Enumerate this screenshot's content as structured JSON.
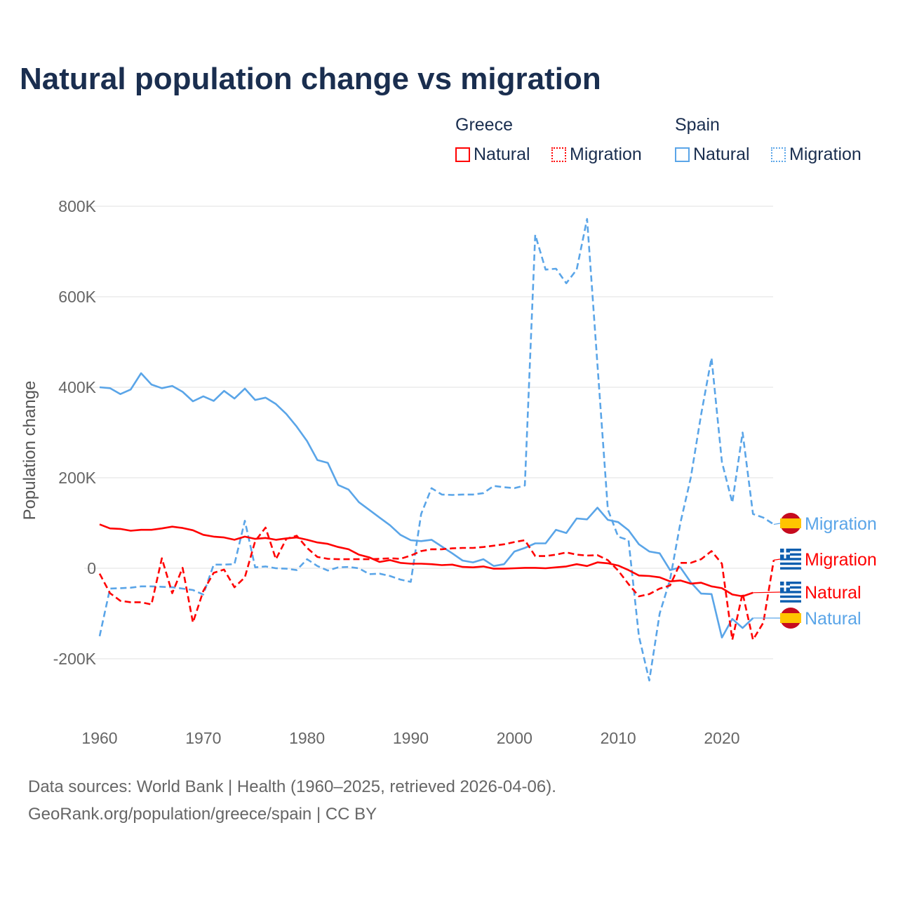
{
  "chart_data": {
    "type": "line",
    "title": "Natural population change vs migration",
    "xlabel": "",
    "ylabel": "Population change",
    "xlim": [
      1960,
      2025
    ],
    "ylim": [
      -300000,
      800000
    ],
    "x_ticks": [
      "1960",
      "1970",
      "1980",
      "1990",
      "2000",
      "2010",
      "2020"
    ],
    "y_ticks": [
      {
        "v": 800000,
        "label": "800K"
      },
      {
        "v": 600000,
        "label": "600K"
      },
      {
        "v": 400000,
        "label": "400K"
      },
      {
        "v": 200000,
        "label": "200K"
      },
      {
        "v": 0,
        "label": "0"
      },
      {
        "v": -200000,
        "label": "-200K"
      }
    ],
    "grid": true,
    "legend": {
      "placement": "top-right",
      "groups": [
        {
          "name": "Greece",
          "items": [
            "Natural",
            "Migration"
          ]
        },
        {
          "name": "Spain",
          "items": [
            "Natural",
            "Migration"
          ]
        }
      ]
    },
    "series": [
      {
        "name": "Greece Natural",
        "country": "Greece",
        "kind": "Natural",
        "color": "#ff0000",
        "dashed": false,
        "start": 1960,
        "values": [
          97,
          88,
          87,
          83,
          85,
          85,
          88,
          92,
          89,
          84,
          74,
          70,
          68,
          63,
          70,
          65,
          67,
          63,
          66,
          68,
          63,
          57,
          54,
          47,
          42,
          30,
          24,
          14,
          18,
          12,
          10,
          10,
          9,
          7,
          8,
          3,
          2,
          4,
          -1,
          -1,
          0,
          1,
          1,
          0,
          2,
          4,
          9,
          5,
          13,
          11,
          6,
          -4,
          -16,
          -17,
          -20,
          -29,
          -27,
          -34,
          -32,
          -40,
          -44,
          -58,
          -62,
          -54
        ]
      },
      {
        "name": "Greece Migration",
        "country": "Greece",
        "kind": "Migration",
        "color": "#ff0000",
        "dashed": true,
        "start": 1960,
        "values": [
          -12,
          -55,
          -72,
          -75,
          -75,
          -80,
          22,
          -55,
          1,
          -120,
          -50,
          -10,
          -3,
          -42,
          -20,
          60,
          90,
          20,
          65,
          72,
          45,
          25,
          21,
          20,
          20,
          20,
          20,
          21,
          22,
          21,
          28,
          38,
          42,
          42,
          44,
          45,
          45,
          47,
          50,
          53,
          58,
          62,
          27,
          27,
          30,
          35,
          30,
          28,
          29,
          18,
          -5,
          -35,
          -62,
          -57,
          -45,
          -38,
          12,
          12,
          20,
          38,
          10,
          -158,
          -55,
          -158,
          -120,
          18
        ]
      },
      {
        "name": "Spain Natural",
        "country": "Spain",
        "kind": "Natural",
        "color": "#5aa5e8",
        "dashed": false,
        "start": 1960,
        "values": [
          400,
          398,
          385,
          395,
          431,
          406,
          398,
          403,
          390,
          369,
          380,
          370,
          392,
          375,
          397,
          372,
          377,
          363,
          341,
          313,
          281,
          239,
          233,
          184,
          174,
          146,
          129,
          112,
          95,
          74,
          62,
          60,
          63,
          48,
          33,
          17,
          13,
          20,
          5,
          9,
          37,
          45,
          55,
          55,
          85,
          78,
          110,
          108,
          134,
          107,
          102,
          84,
          53,
          37,
          33,
          -4,
          2,
          -31,
          -56,
          -57,
          -153,
          -112,
          -132,
          -110
        ]
      },
      {
        "name": "Spain Migration",
        "country": "Spain",
        "kind": "Migration",
        "color": "#5aa5e8",
        "dashed": true,
        "start": 1960,
        "values": [
          -150,
          -45,
          -44,
          -43,
          -40,
          -40,
          -41,
          -42,
          -45,
          -48,
          -58,
          8,
          8,
          9,
          105,
          2,
          4,
          0,
          -1,
          -4,
          20,
          5,
          -5,
          2,
          3,
          0,
          -13,
          -12,
          -17,
          -25,
          -30,
          120,
          177,
          163,
          162,
          163,
          163,
          166,
          182,
          179,
          177,
          183,
          737,
          660,
          662,
          630,
          660,
          772,
          450,
          130,
          70,
          62,
          -150,
          -248,
          -100,
          -25,
          100,
          200,
          340,
          465,
          235,
          145,
          300,
          120,
          112,
          97
        ]
      }
    ],
    "value_units": "thousands",
    "end_labels": [
      {
        "text": "Migration",
        "country": "Spain",
        "color": "#5aa5e8"
      },
      {
        "text": "Migration",
        "country": "Greece",
        "color": "#ff0000"
      },
      {
        "text": "Natural",
        "country": "Greece",
        "color": "#ff0000"
      },
      {
        "text": "Natural",
        "country": "Spain",
        "color": "#5aa5e8"
      }
    ]
  },
  "footer": {
    "line1": "Data sources: World Bank | Health (1960–2025, retrieved 2026-04-06).",
    "line2": "GeoRank.org/population/greece/spain | CC BY"
  }
}
